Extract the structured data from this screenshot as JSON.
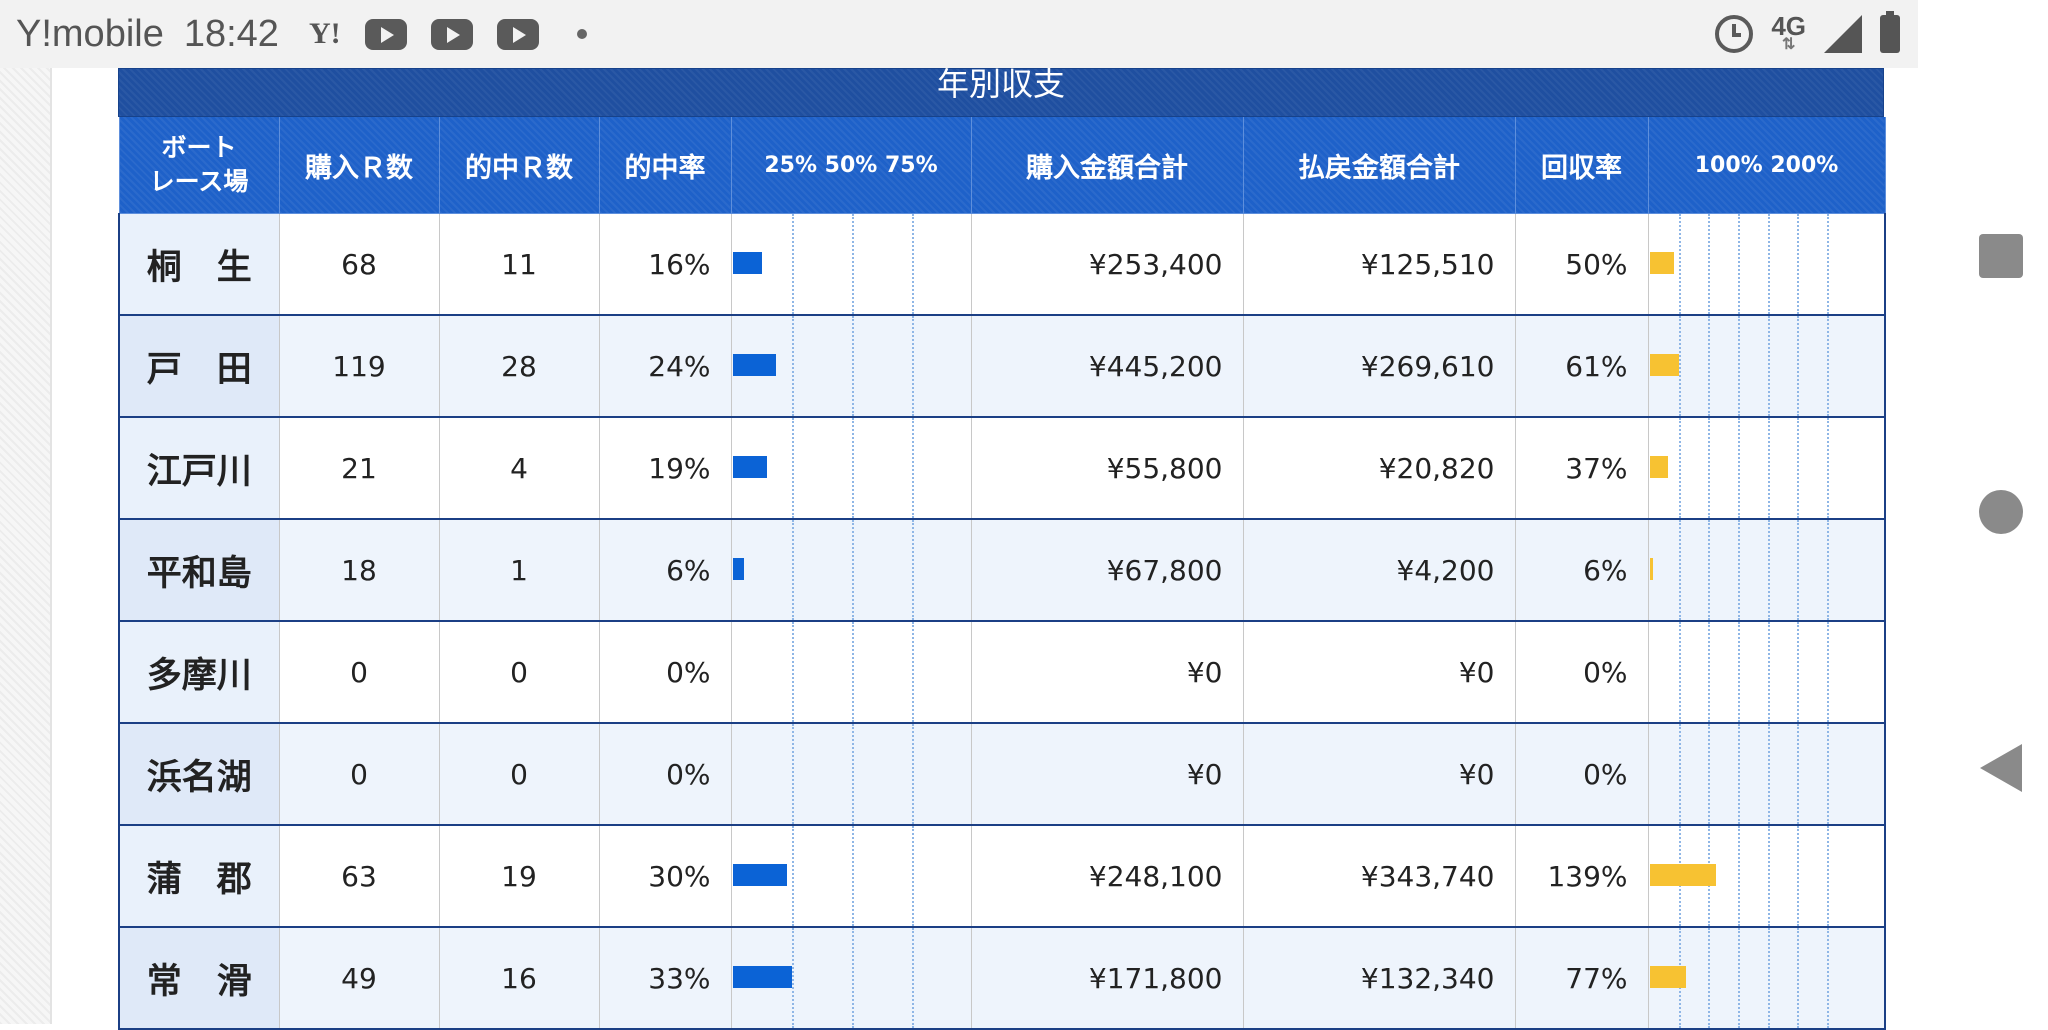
{
  "status_bar": {
    "carrier": "Y!mobile",
    "time": "18:42",
    "yahoo": "Y!",
    "network": "4G"
  },
  "table": {
    "title": "年別収支",
    "headers": {
      "venue_line1": "ボート",
      "venue_line2": "レース場",
      "purchased_races": "購入Ｒ数",
      "hit_races": "的中Ｒ数",
      "hit_rate": "的中率",
      "hit_scale": "25% 50% 75%",
      "purchase_total": "購入金額合計",
      "payout_total": "払戻金額合計",
      "return_rate": "回収率",
      "return_scale": "100% 200%"
    },
    "rows": [
      {
        "venue": "桐　生",
        "purchased": "68",
        "hits": "11",
        "hit_rate": "16%",
        "hit_rate_value": 16,
        "purchase": "¥253,400",
        "payout": "¥125,510",
        "return_rate": "50%",
        "return_rate_value": 50
      },
      {
        "venue": "戸　田",
        "purchased": "119",
        "hits": "28",
        "hit_rate": "24%",
        "hit_rate_value": 24,
        "purchase": "¥445,200",
        "payout": "¥269,610",
        "return_rate": "61%",
        "return_rate_value": 61
      },
      {
        "venue": "江戸川",
        "purchased": "21",
        "hits": "4",
        "hit_rate": "19%",
        "hit_rate_value": 19,
        "purchase": "¥55,800",
        "payout": "¥20,820",
        "return_rate": "37%",
        "return_rate_value": 37
      },
      {
        "venue": "平和島",
        "purchased": "18",
        "hits": "1",
        "hit_rate": "6%",
        "hit_rate_value": 6,
        "purchase": "¥67,800",
        "payout": "¥4,200",
        "return_rate": "6%",
        "return_rate_value": 6
      },
      {
        "venue": "多摩川",
        "purchased": "0",
        "hits": "0",
        "hit_rate": "0%",
        "hit_rate_value": 0,
        "purchase": "¥0",
        "payout": "¥0",
        "return_rate": "0%",
        "return_rate_value": 0
      },
      {
        "venue": "浜名湖",
        "purchased": "0",
        "hits": "0",
        "hit_rate": "0%",
        "hit_rate_value": 0,
        "purchase": "¥0",
        "payout": "¥0",
        "return_rate": "0%",
        "return_rate_value": 0
      },
      {
        "venue": "蒲　郡",
        "purchased": "63",
        "hits": "19",
        "hit_rate": "30%",
        "hit_rate_value": 30,
        "purchase": "¥248,100",
        "payout": "¥343,740",
        "return_rate": "139%",
        "return_rate_value": 139
      },
      {
        "venue": "常　滑",
        "purchased": "49",
        "hits": "16",
        "hit_rate": "33%",
        "hit_rate_value": 33,
        "purchase": "¥171,800",
        "payout": "¥132,340",
        "return_rate": "77%",
        "return_rate_value": 77
      }
    ]
  },
  "colors": {
    "title_bg": "#1f4fa0",
    "header_bg": "#1e61c9",
    "hit_bar": "#0b63d6",
    "return_bar": "#f7c232"
  }
}
